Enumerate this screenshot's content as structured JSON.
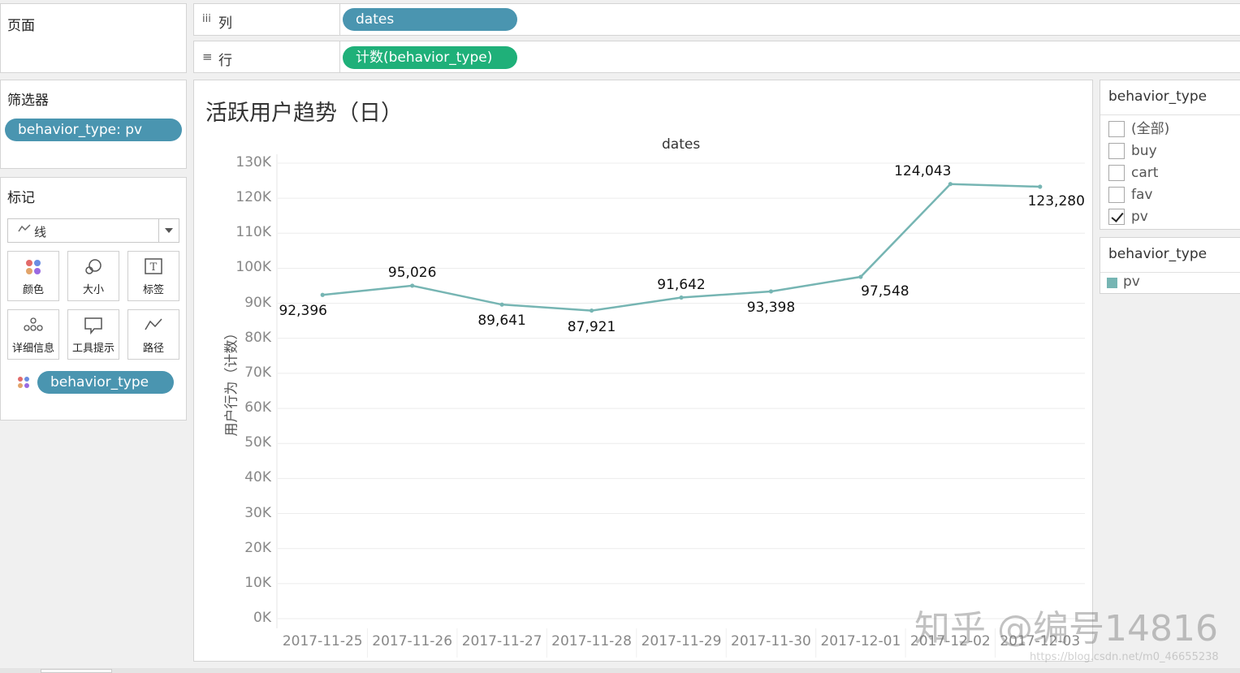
{
  "left": {
    "pages_title": "页面",
    "filters_title": "筛选器",
    "filter_pill": "behavior_type: pv",
    "marks_title": "标记",
    "mark_type": "线",
    "mark_buttons": [
      "颜色",
      "大小",
      "标签",
      "详细信息",
      "工具提示",
      "路径"
    ],
    "color_pill": "behavior_type"
  },
  "shelves": {
    "columns_label": "列",
    "columns_pill": "dates",
    "rows_label": "行",
    "rows_pill": "计数(behavior_type)"
  },
  "legend_filter": {
    "title": "behavior_type",
    "items": [
      {
        "label": "(全部)",
        "checked": false
      },
      {
        "label": "buy",
        "checked": false
      },
      {
        "label": "cart",
        "checked": false
      },
      {
        "label": "fav",
        "checked": false
      },
      {
        "label": "pv",
        "checked": true
      }
    ]
  },
  "legend_color": {
    "title": "behavior_type",
    "item": "pv",
    "color": "#76b5b3"
  },
  "chart_data": {
    "type": "line",
    "title": "活跃用户趋势（日）",
    "header": "dates",
    "ylabel": "用户行为（计数）",
    "xlabel": "",
    "categories": [
      "2017-11-25",
      "2017-11-26",
      "2017-11-27",
      "2017-11-28",
      "2017-11-29",
      "2017-11-30",
      "2017-12-01",
      "2017-12-02",
      "2017-12-03"
    ],
    "series": [
      {
        "name": "pv",
        "values": [
          92396,
          95026,
          89641,
          87921,
          91642,
          93398,
          97548,
          124043,
          123280
        ],
        "color": "#76b5b3"
      }
    ],
    "data_labels": [
      "92,396",
      "95,026",
      "89,641",
      "87,921",
      "91,642",
      "93,398",
      "97,548",
      "124,043",
      "123,280"
    ],
    "yticks": [
      "0K",
      "10K",
      "20K",
      "30K",
      "40K",
      "50K",
      "60K",
      "70K",
      "80K",
      "90K",
      "100K",
      "110K",
      "120K",
      "130K"
    ],
    "ylim": [
      0,
      130000
    ],
    "grid": true
  },
  "watermark": {
    "main": "知乎 @编号14816",
    "sub": "https://blog.csdn.net/m0_46655238"
  }
}
